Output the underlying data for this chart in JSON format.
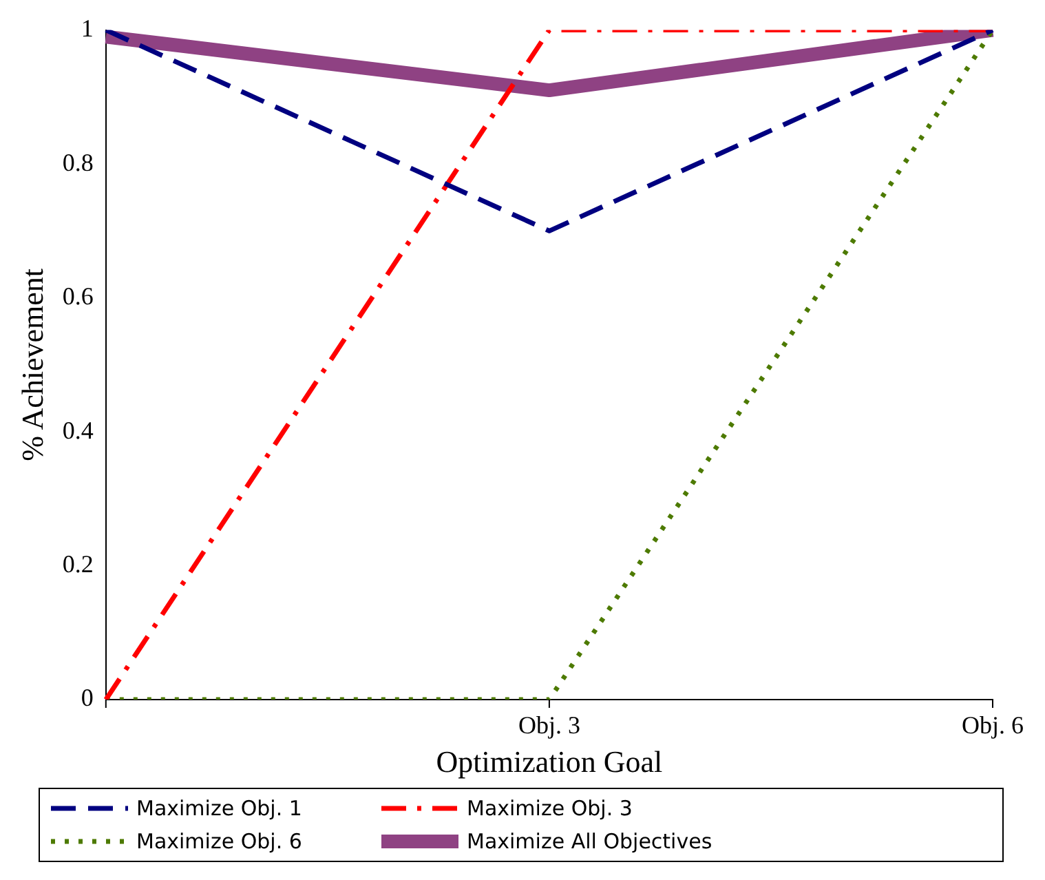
{
  "chart_data": {
    "type": "line",
    "xlabel": "Optimization Goal",
    "ylabel": "% Achievement",
    "categories": [
      null,
      "Obj. 3",
      "Obj. 6"
    ],
    "ylim": [
      0,
      1
    ],
    "yticks": [
      0,
      0.2,
      0.4,
      0.6,
      0.8,
      1
    ],
    "grid": false,
    "legend": "bottom",
    "marker": "none",
    "series": [
      {
        "name": "Maximize Obj. 1",
        "color": "#000080",
        "line_style": "dashed",
        "values": [
          1,
          0.7,
          1
        ]
      },
      {
        "name": "Maximize Obj. 3",
        "color": "#ff0000",
        "line_style": "dashdot",
        "values": [
          0,
          1,
          1
        ]
      },
      {
        "name": "Maximize Obj. 6",
        "color": "#4d7a00",
        "line_style": "dotted",
        "values": [
          0,
          0,
          1
        ]
      },
      {
        "name": "Maximize All Objectives",
        "color": "#8f4283",
        "line_style": "solid",
        "values": [
          0.99,
          0.91,
          1
        ]
      }
    ]
  }
}
